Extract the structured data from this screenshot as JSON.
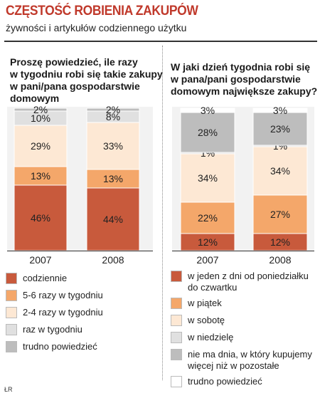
{
  "header": {
    "title": "CZĘSTOŚĆ ROBIENIA ZAKUPÓW",
    "subtitle": "żywności i artykułów codziennego użytku"
  },
  "credit": "ŁR",
  "colors": {
    "title": "#c0392b",
    "dark_red": "#c85a3c",
    "orange": "#f4a76a",
    "cream": "#fde8d4",
    "light_gray": "#e0e0e0",
    "dark_gray": "#bdbdbd",
    "white": "#ffffff"
  },
  "chart_data": [
    {
      "type": "bar",
      "stacked": true,
      "title": "Proszę powiedzieć, ile razy w tygodniu robi się takie zakupy w pani/pana gospodarstwie domowym",
      "categories": [
        "2007",
        "2008"
      ],
      "series": [
        {
          "name": "codziennie",
          "color": "#c85a3c",
          "values": [
            46,
            44
          ],
          "labels": [
            "46%",
            "44%"
          ]
        },
        {
          "name": "5-6 razy w tygodniu",
          "color": "#f4a76a",
          "values": [
            13,
            13
          ],
          "labels": [
            "13%",
            "13%"
          ]
        },
        {
          "name": "2-4 razy w tygodniu",
          "color": "#fde8d4",
          "values": [
            29,
            33
          ],
          "labels": [
            "29%",
            "33%"
          ]
        },
        {
          "name": "raz w tygodniu",
          "color": "#e0e0e0",
          "values": [
            10,
            8
          ],
          "labels": [
            "10%",
            "8%"
          ]
        },
        {
          "name": "trudno powiedzieć",
          "color": "#bdbdbd",
          "values": [
            2,
            2
          ],
          "labels": [
            "2%",
            "2%"
          ]
        }
      ]
    },
    {
      "type": "bar",
      "stacked": true,
      "title": "W jaki dzień tygodnia robi się w pana/pani gospodarstwie domowym największe zakupy?",
      "categories": [
        "2007",
        "2008"
      ],
      "series": [
        {
          "name": "w jeden z dni od poniedziałku do czwartku",
          "color": "#c85a3c",
          "values": [
            12,
            12
          ],
          "labels": [
            "12%",
            "12%"
          ]
        },
        {
          "name": "w piątek",
          "color": "#f4a76a",
          "values": [
            22,
            27
          ],
          "labels": [
            "22%",
            "27%"
          ]
        },
        {
          "name": "w sobotę",
          "color": "#fde8d4",
          "values": [
            34,
            34
          ],
          "labels": [
            "34%",
            "34%"
          ]
        },
        {
          "name": "w niedzielę",
          "color": "#e0e0e0",
          "values": [
            1,
            1
          ],
          "labels": [
            "1%",
            "1%"
          ]
        },
        {
          "name": "nie ma dnia, w który kupujemy więcej niż w pozostałe",
          "color": "#bdbdbd",
          "values": [
            28,
            23
          ],
          "labels": [
            "28%",
            "23%"
          ]
        },
        {
          "name": "trudno powiedzieć",
          "color": "#ffffff",
          "values": [
            3,
            3
          ],
          "labels": [
            "3%",
            "3%"
          ]
        }
      ]
    }
  ],
  "left_panel": {
    "question_lines": [
      "Proszę powiedzieć, ile razy",
      "w tygodniu robi się takie zakupy",
      "w pani/pana gospodarstwie",
      "domowym"
    ],
    "legend": [
      {
        "label_lines": [
          "codziennie"
        ],
        "color": "#c85a3c"
      },
      {
        "label_lines": [
          "5-6 razy w tygodniu"
        ],
        "color": "#f4a76a"
      },
      {
        "label_lines": [
          "2-4 razy w tygodniu"
        ],
        "color": "#fde8d4"
      },
      {
        "label_lines": [
          "raz w tygodniu"
        ],
        "color": "#e0e0e0"
      },
      {
        "label_lines": [
          "trudno powiedzieć"
        ],
        "color": "#bdbdbd"
      }
    ]
  },
  "right_panel": {
    "question_lines": [
      "W jaki dzień tygodnia robi się",
      "w pana/pani gospodarstwie",
      "domowym największe zakupy?"
    ],
    "legend": [
      {
        "label_lines": [
          "w jeden z dni od poniedziałku",
          "do czwartku"
        ],
        "color": "#c85a3c"
      },
      {
        "label_lines": [
          "w piątek"
        ],
        "color": "#f4a76a"
      },
      {
        "label_lines": [
          "w sobotę"
        ],
        "color": "#fde8d4"
      },
      {
        "label_lines": [
          "w niedzielę"
        ],
        "color": "#e0e0e0"
      },
      {
        "label_lines": [
          "nie ma dnia, w który kupujemy",
          "więcej niż w pozostałe"
        ],
        "color": "#bdbdbd"
      },
      {
        "label_lines": [
          "trudno powiedzieć"
        ],
        "color": "#ffffff"
      }
    ]
  }
}
